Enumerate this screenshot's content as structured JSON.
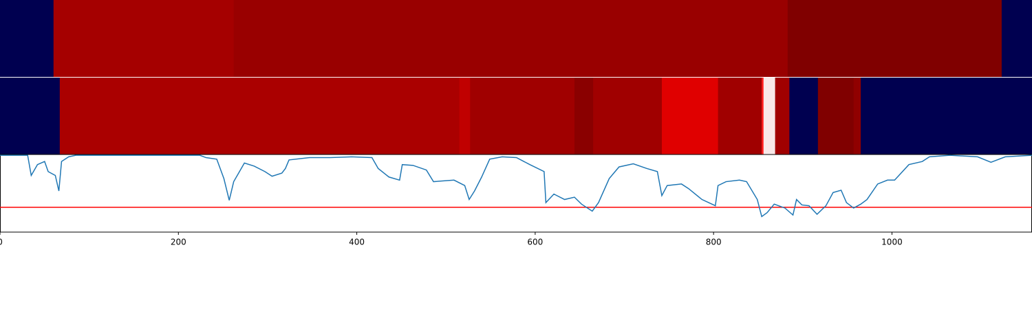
{
  "chart_data": {
    "type": "line",
    "xlim": [
      0,
      1157
    ],
    "xticks": [
      0,
      200,
      400,
      600,
      800,
      1000
    ],
    "ylim": [
      0,
      1
    ],
    "heatmaps": [
      {
        "edges": [
          0,
          60,
          262,
          883,
          1123,
          1157
        ],
        "colors": [
          "#000050",
          "#a50000",
          "#990000",
          "#800000",
          "#000050"
        ]
      },
      {
        "edges": [
          0,
          67,
          515,
          527,
          644,
          665,
          742,
          805,
          854,
          856,
          869,
          885,
          917,
          957,
          965,
          1157
        ],
        "colors": [
          "#000050",
          "#aa0000",
          "#c00000",
          "#a00000",
          "#8a0000",
          "#a00000",
          "#e00000",
          "#a00000",
          "#ff2020",
          "#f8e8e8",
          "#a00000",
          "#000050",
          "#800000",
          "#900000",
          "#000050"
        ]
      }
    ],
    "x": [
      0,
      31,
      35,
      42,
      50,
      54,
      62,
      66,
      69,
      77,
      85,
      224,
      231,
      243,
      251,
      257,
      262,
      274,
      285,
      297,
      305,
      316,
      320,
      324,
      347,
      370,
      394,
      417,
      424,
      436,
      448,
      451,
      463,
      478,
      486,
      509,
      521,
      526,
      532,
      540,
      549,
      563,
      579,
      594,
      610,
      612,
      621,
      633,
      644,
      652,
      664,
      671,
      683,
      694,
      710,
      725,
      737,
      742,
      748,
      764,
      772,
      787,
      802,
      805,
      814,
      829,
      837,
      849,
      854,
      860,
      868,
      880,
      889,
      893,
      899,
      907,
      916,
      926,
      934,
      943,
      949,
      957,
      965,
      972,
      984,
      995,
      1003,
      1019,
      1034,
      1042,
      1065,
      1096,
      1111,
      1127,
      1157
    ],
    "series": [
      {
        "color": "#1f77b4",
        "values": [
          0.99,
          0.99,
          0.73,
          0.87,
          0.91,
          0.78,
          0.73,
          0.53,
          0.91,
          0.97,
          0.99,
          0.99,
          0.96,
          0.94,
          0.69,
          0.41,
          0.65,
          0.89,
          0.85,
          0.78,
          0.72,
          0.76,
          0.82,
          0.93,
          0.96,
          0.96,
          0.97,
          0.96,
          0.82,
          0.71,
          0.67,
          0.87,
          0.86,
          0.8,
          0.65,
          0.67,
          0.6,
          0.42,
          0.53,
          0.71,
          0.94,
          0.97,
          0.96,
          0.87,
          0.78,
          0.38,
          0.49,
          0.42,
          0.45,
          0.36,
          0.27,
          0.38,
          0.69,
          0.84,
          0.88,
          0.82,
          0.78,
          0.47,
          0.6,
          0.62,
          0.56,
          0.42,
          0.34,
          0.6,
          0.65,
          0.67,
          0.65,
          0.42,
          0.2,
          0.25,
          0.36,
          0.31,
          0.22,
          0.42,
          0.35,
          0.34,
          0.23,
          0.34,
          0.51,
          0.54,
          0.38,
          0.31,
          0.36,
          0.42,
          0.62,
          0.67,
          0.67,
          0.87,
          0.91,
          0.97,
          0.99,
          0.97,
          0.9,
          0.97,
          0.99
        ]
      }
    ],
    "threshold": {
      "value": 0.32,
      "color": "#ff0000"
    }
  }
}
